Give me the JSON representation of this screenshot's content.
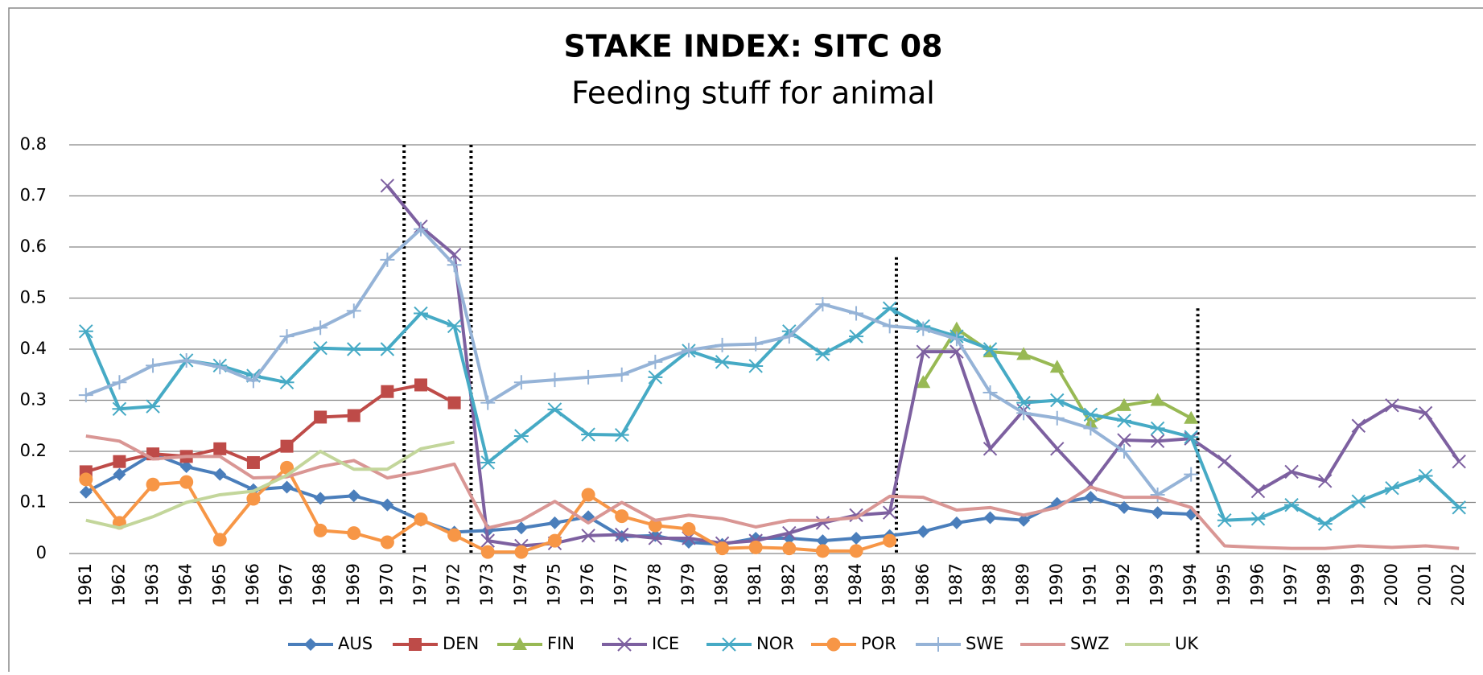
{
  "chart_data": {
    "type": "line",
    "title": "STAKE INDEX: SITC 08",
    "subtitle": "Feeding stuff for animal",
    "categories": [
      "1961",
      "1962",
      "1963",
      "1964",
      "1965",
      "1966",
      "1967",
      "1968",
      "1969",
      "1970",
      "1971",
      "1972",
      "1973",
      "1974",
      "1975",
      "1976",
      "1977",
      "1978",
      "1979",
      "1980",
      "1981",
      "1982",
      "1983",
      "1984",
      "1985",
      "1986",
      "1987",
      "1988",
      "1989",
      "1990",
      "1991",
      "1992",
      "1993",
      "1994",
      "1995",
      "1996",
      "1997",
      "1998",
      "1999",
      "2000",
      "2001",
      "2002"
    ],
    "ylim": [
      0,
      0.8
    ],
    "yticks": [
      0,
      0.1,
      0.2,
      0.3,
      0.4,
      0.5,
      0.6,
      0.7,
      0.8
    ],
    "grid": true,
    "legend": "bottom",
    "vlines": [
      {
        "x": 1970.5,
        "top": 0.8
      },
      {
        "x": 1972.5,
        "top": 0.8
      },
      {
        "x": 1985.2,
        "top": 0.58
      },
      {
        "x": 1994.2,
        "top": 0.48
      }
    ],
    "series": [
      {
        "name": "AUS",
        "color": "#4a7ebb",
        "marker": "diamond",
        "values": [
          0.12,
          0.155,
          0.195,
          0.17,
          0.155,
          0.125,
          0.13,
          0.108,
          0.113,
          0.095,
          0.065,
          0.042,
          0.045,
          0.05,
          0.06,
          0.072,
          0.033,
          0.035,
          0.022,
          0.018,
          0.03,
          0.03,
          0.025,
          0.03,
          0.035,
          0.043,
          0.06,
          0.07,
          0.065,
          0.098,
          0.11,
          0.09,
          0.08,
          0.077,
          null,
          null,
          null,
          null,
          null,
          null,
          null,
          null
        ]
      },
      {
        "name": "DEN",
        "color": "#be4b48",
        "marker": "square",
        "values": [
          0.16,
          0.18,
          0.195,
          0.19,
          0.205,
          0.178,
          0.21,
          0.267,
          0.27,
          0.317,
          0.33,
          0.295,
          null,
          null,
          null,
          null,
          null,
          null,
          null,
          null,
          null,
          null,
          null,
          null,
          null,
          null,
          null,
          null,
          null,
          null,
          null,
          null,
          null,
          null,
          null,
          null,
          null,
          null,
          null,
          null,
          null,
          null
        ]
      },
      {
        "name": "FIN",
        "color": "#98b954",
        "marker": "triangle",
        "values": [
          null,
          null,
          null,
          null,
          null,
          null,
          null,
          null,
          null,
          null,
          null,
          null,
          null,
          null,
          null,
          null,
          null,
          null,
          null,
          null,
          null,
          null,
          null,
          null,
          null,
          0.335,
          0.44,
          0.395,
          0.39,
          0.365,
          0.255,
          0.29,
          0.3,
          0.265,
          null,
          null,
          null,
          null,
          null,
          null,
          null,
          null
        ]
      },
      {
        "name": "ICE",
        "color": "#7d60a0",
        "marker": "x",
        "values": [
          null,
          null,
          null,
          null,
          null,
          null,
          null,
          null,
          null,
          0.72,
          0.64,
          0.585,
          0.025,
          0.015,
          0.02,
          0.035,
          0.037,
          0.03,
          0.03,
          0.02,
          0.025,
          0.04,
          0.06,
          0.075,
          0.08,
          0.395,
          0.395,
          0.205,
          0.28,
          0.205,
          0.135,
          0.222,
          0.22,
          0.225,
          0.18,
          0.122,
          0.16,
          0.142,
          0.25,
          0.29,
          0.275,
          0.18
        ]
      },
      {
        "name": "NOR",
        "color": "#46aac5",
        "marker": "star",
        "values": [
          0.435,
          0.283,
          0.288,
          0.378,
          0.368,
          0.348,
          0.335,
          0.402,
          0.4,
          0.4,
          0.47,
          0.445,
          0.178,
          0.23,
          0.282,
          0.233,
          0.232,
          0.345,
          0.397,
          0.375,
          0.367,
          0.435,
          0.39,
          0.425,
          0.48,
          0.445,
          0.425,
          0.4,
          0.295,
          0.3,
          0.272,
          0.26,
          0.245,
          0.228,
          0.065,
          0.068,
          0.095,
          0.058,
          0.102,
          0.128,
          0.152,
          0.09
        ]
      },
      {
        "name": "POR",
        "color": "#f79646",
        "marker": "circle",
        "values": [
          0.145,
          0.06,
          0.135,
          0.14,
          0.027,
          0.107,
          0.168,
          0.045,
          0.04,
          0.022,
          0.067,
          0.036,
          0.003,
          0.003,
          0.025,
          0.115,
          0.073,
          0.055,
          0.048,
          0.01,
          0.012,
          0.01,
          0.005,
          0.005,
          0.025,
          null,
          null,
          null,
          null,
          null,
          null,
          null,
          null,
          null,
          null,
          null,
          null,
          null,
          null,
          null,
          null,
          null
        ]
      },
      {
        "name": "SWE",
        "color": "#95b3d7",
        "marker": "plus",
        "values": [
          0.31,
          0.335,
          0.368,
          0.378,
          0.365,
          0.338,
          0.425,
          0.442,
          0.475,
          0.575,
          0.635,
          0.565,
          0.295,
          0.335,
          0.34,
          0.345,
          0.35,
          0.375,
          0.398,
          0.408,
          0.41,
          0.425,
          0.488,
          0.47,
          0.445,
          0.44,
          0.42,
          0.315,
          0.275,
          0.265,
          0.245,
          0.2,
          0.115,
          0.155,
          null,
          null,
          null,
          null,
          null,
          null,
          null,
          null
        ]
      },
      {
        "name": "SWZ",
        "color": "#d99694",
        "marker": "none",
        "values": [
          0.23,
          0.22,
          0.185,
          0.19,
          0.19,
          0.148,
          0.15,
          0.17,
          0.182,
          0.148,
          0.16,
          0.175,
          0.05,
          0.065,
          0.102,
          0.06,
          0.1,
          0.065,
          0.075,
          0.068,
          0.052,
          0.065,
          0.065,
          0.07,
          0.112,
          0.11,
          0.085,
          0.09,
          0.075,
          0.09,
          0.13,
          0.11,
          0.11,
          0.09,
          0.015,
          0.012,
          0.01,
          0.01,
          0.015,
          0.012,
          0.015,
          0.01
        ]
      },
      {
        "name": "UK",
        "color": "#c3d69b",
        "marker": "none",
        "values": [
          0.065,
          0.05,
          0.072,
          0.1,
          0.115,
          0.122,
          0.153,
          0.2,
          0.165,
          0.165,
          0.205,
          0.218,
          null,
          null,
          null,
          null,
          null,
          null,
          null,
          null,
          null,
          null,
          null,
          null,
          null,
          null,
          null,
          null,
          null,
          null,
          null,
          null,
          null,
          null,
          null,
          null,
          null,
          null,
          null,
          null,
          null,
          null
        ]
      }
    ]
  }
}
